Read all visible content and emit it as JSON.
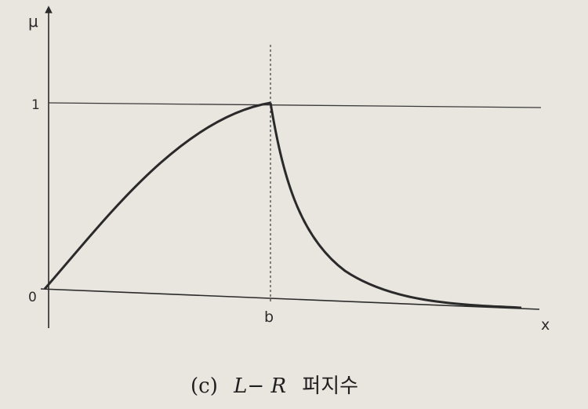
{
  "labels": {
    "y_axis": "μ",
    "x_axis": "x",
    "origin": "0",
    "one": "1",
    "b": "b"
  },
  "caption": {
    "prefix": "(c)",
    "math": "L− R",
    "korean": "퍼지수"
  },
  "colors": {
    "background": "#e9e6df",
    "ink": "#2b2b2b",
    "curve": "#2a2a2a"
  }
}
